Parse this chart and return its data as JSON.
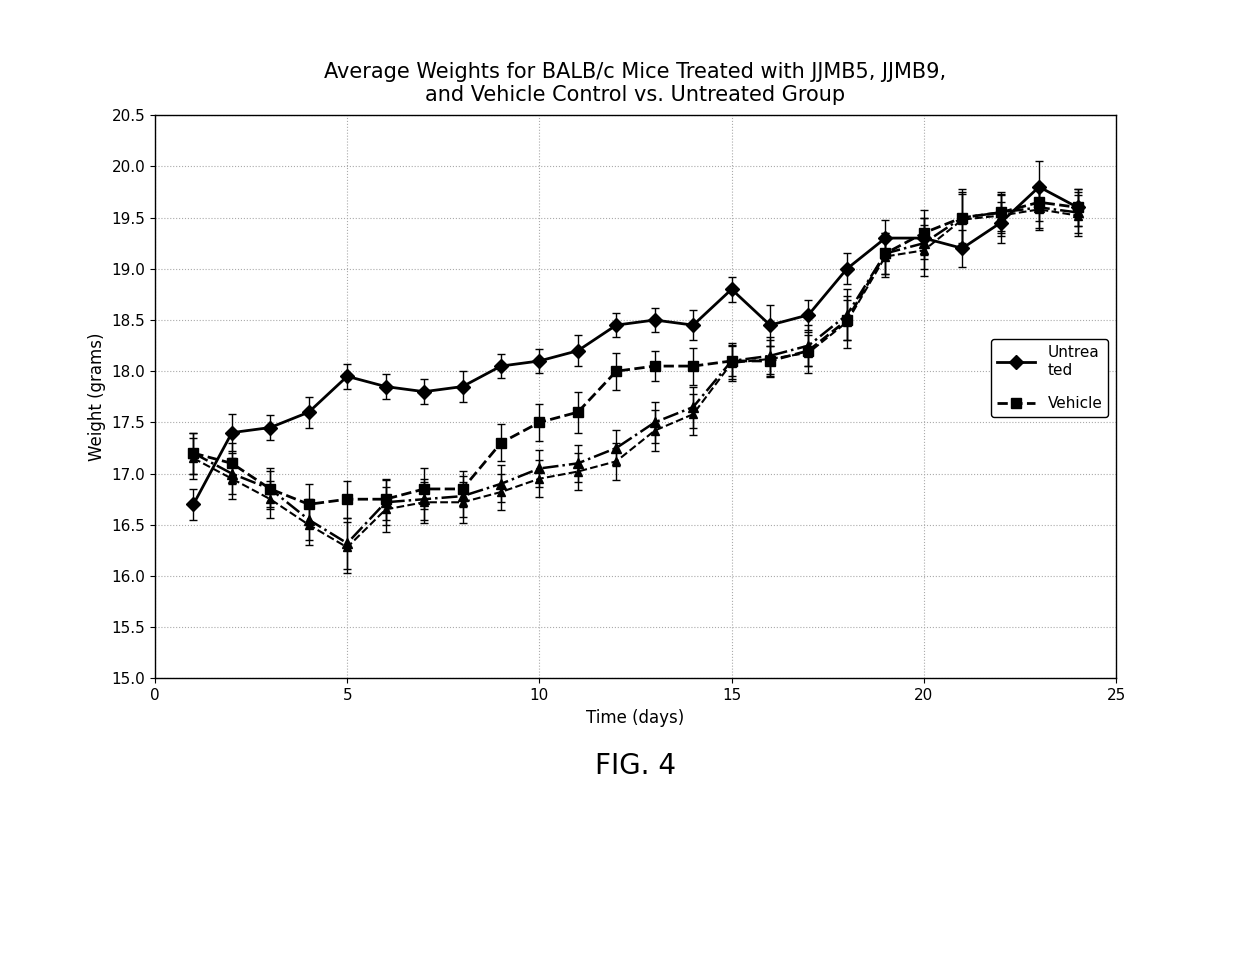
{
  "title": "Average Weights for BALB/c Mice Treated with JJMB5, JJMB9,\nand Vehicle Control vs. Untreated Group",
  "xlabel": "Time (days)",
  "ylabel": "Weight (grams)",
  "xlim": [
    0,
    25
  ],
  "ylim": [
    15,
    20.5
  ],
  "yticks": [
    15,
    15.5,
    16,
    16.5,
    17,
    17.5,
    18,
    18.5,
    19,
    19.5,
    20,
    20.5
  ],
  "xticks": [
    0,
    5,
    10,
    15,
    20,
    25
  ],
  "series": {
    "Untreated": {
      "x": [
        1,
        2,
        3,
        4,
        5,
        6,
        7,
        8,
        9,
        10,
        11,
        12,
        13,
        14,
        15,
        16,
        17,
        18,
        19,
        20,
        21,
        22,
        23,
        24
      ],
      "y": [
        16.7,
        17.4,
        17.45,
        17.6,
        17.95,
        17.85,
        17.8,
        17.85,
        18.05,
        18.1,
        18.2,
        18.45,
        18.5,
        18.45,
        18.8,
        18.45,
        18.55,
        19.0,
        19.3,
        19.3,
        19.2,
        19.45,
        19.8,
        19.6
      ],
      "yerr": [
        0.15,
        0.18,
        0.12,
        0.15,
        0.12,
        0.12,
        0.12,
        0.15,
        0.12,
        0.12,
        0.15,
        0.12,
        0.12,
        0.15,
        0.12,
        0.2,
        0.15,
        0.15,
        0.18,
        0.2,
        0.18,
        0.2,
        0.25,
        0.18
      ],
      "linestyle": "-",
      "marker": "D",
      "color": "#000000",
      "linewidth": 2.0,
      "markersize": 7
    },
    "Vehicle": {
      "x": [
        1,
        2,
        3,
        4,
        5,
        6,
        7,
        8,
        9,
        10,
        11,
        12,
        13,
        14,
        15,
        16,
        17,
        18,
        19,
        20,
        21,
        22,
        23,
        24
      ],
      "y": [
        17.2,
        17.1,
        16.85,
        16.7,
        16.75,
        16.75,
        16.85,
        16.85,
        17.3,
        17.5,
        17.6,
        18.0,
        18.05,
        18.05,
        18.1,
        18.1,
        18.2,
        18.5,
        19.15,
        19.35,
        19.5,
        19.55,
        19.65,
        19.6
      ],
      "yerr": [
        0.2,
        0.2,
        0.2,
        0.2,
        0.18,
        0.2,
        0.2,
        0.18,
        0.18,
        0.18,
        0.2,
        0.18,
        0.15,
        0.18,
        0.15,
        0.15,
        0.15,
        0.2,
        0.2,
        0.22,
        0.28,
        0.18,
        0.18,
        0.18
      ],
      "linestyle": "--",
      "marker": "s",
      "color": "#000000",
      "linewidth": 2.0,
      "markersize": 7
    },
    "JJMB5": {
      "x": [
        1,
        2,
        3,
        4,
        5,
        6,
        7,
        8,
        9,
        10,
        11,
        12,
        13,
        14,
        15,
        16,
        17,
        18,
        19,
        20,
        21,
        22,
        23,
        24
      ],
      "y": [
        17.2,
        17.0,
        16.85,
        16.55,
        16.32,
        16.72,
        16.75,
        16.78,
        16.9,
        17.05,
        17.1,
        17.25,
        17.5,
        17.65,
        18.1,
        18.15,
        18.25,
        18.55,
        19.15,
        19.25,
        19.5,
        19.55,
        19.6,
        19.55
      ],
      "yerr": [
        0.2,
        0.2,
        0.18,
        0.2,
        0.25,
        0.22,
        0.2,
        0.2,
        0.18,
        0.18,
        0.18,
        0.18,
        0.2,
        0.2,
        0.18,
        0.18,
        0.2,
        0.25,
        0.2,
        0.25,
        0.25,
        0.2,
        0.2,
        0.2
      ],
      "linestyle": "-.",
      "marker": "^",
      "color": "#000000",
      "linewidth": 1.8,
      "markersize": 7
    },
    "JJMB9": {
      "x": [
        1,
        2,
        3,
        4,
        5,
        6,
        7,
        8,
        9,
        10,
        11,
        12,
        13,
        14,
        15,
        16,
        17,
        18,
        19,
        20,
        21,
        22,
        23,
        24
      ],
      "y": [
        17.15,
        16.95,
        16.75,
        16.5,
        16.28,
        16.65,
        16.72,
        16.72,
        16.82,
        16.95,
        17.02,
        17.12,
        17.42,
        17.58,
        18.08,
        18.12,
        18.18,
        18.48,
        19.12,
        19.18,
        19.48,
        19.52,
        19.58,
        19.52
      ],
      "yerr": [
        0.2,
        0.2,
        0.18,
        0.2,
        0.25,
        0.22,
        0.2,
        0.2,
        0.18,
        0.18,
        0.18,
        0.18,
        0.2,
        0.2,
        0.18,
        0.18,
        0.2,
        0.25,
        0.2,
        0.25,
        0.25,
        0.2,
        0.2,
        0.2
      ],
      "linestyle": "--",
      "marker": "^",
      "color": "#000000",
      "linewidth": 1.5,
      "markersize": 6
    }
  },
  "legend_labels": [
    "Untrea\nted",
    "Vehicle"
  ],
  "background_color": "#ffffff",
  "grid_color": "#aaaaaa",
  "title_fontsize": 15,
  "label_fontsize": 12,
  "tick_fontsize": 11,
  "fig4_text": "FIG. 4",
  "fig4_fontsize": 20
}
